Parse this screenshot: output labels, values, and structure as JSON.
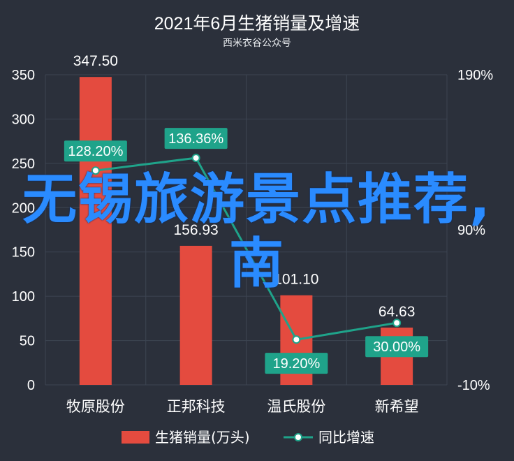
{
  "chart_data": {
    "type": "bar",
    "title": "2021年6月生猪销量及增速",
    "subtitle": "西米衣谷公众号",
    "categories": [
      "牧原股份",
      "正邦科技",
      "温氏股份",
      "新希望"
    ],
    "series": [
      {
        "name": "生猪销量(万头)",
        "kind": "bar",
        "axis": "left",
        "values": [
          347.5,
          156.93,
          101.1,
          64.63
        ],
        "labels": [
          "347.50",
          "156.93",
          "101.10",
          "64.63"
        ]
      },
      {
        "name": "同比增速",
        "kind": "line",
        "axis": "right",
        "values": [
          128.2,
          136.36,
          19.2,
          30.0
        ],
        "labels": [
          "128.20%",
          "136.36%",
          "19.20%",
          "30.00%"
        ]
      }
    ],
    "left_axis": {
      "ylim": [
        0,
        350
      ],
      "ticks": [
        "0",
        "50",
        "100",
        "150",
        "200",
        "250",
        "300",
        "350"
      ]
    },
    "right_axis": {
      "ylim": [
        -10,
        190
      ],
      "ticks": [
        "-10%",
        "90%",
        "190%"
      ]
    },
    "grid": true,
    "legend_position": "bottom",
    "colors": {
      "bar": "#e44b3f",
      "line": "#1fa38a",
      "label_bg": "#1fa38a",
      "background": "#2b303b",
      "grid": "#3d4452"
    }
  },
  "overlay_text": "无锡旅游景点推荐,南"
}
